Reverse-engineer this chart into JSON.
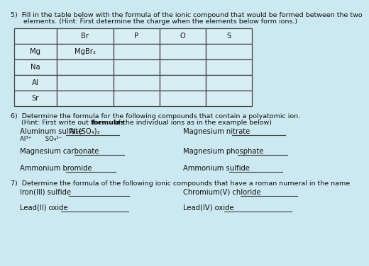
{
  "bg_color": "#cce8f0",
  "table_bg": "#d8eef5",
  "text_color": "#111111",
  "title5": "5)  Fill in the table below with the formula of the ionic compound that would be formed between the two",
  "title5b": "      elements. (Hint: First determine the charge when the elements below form ions.)",
  "table_headers": [
    "",
    "Br",
    "P",
    "O",
    "S"
  ],
  "table_rows": [
    [
      "Mg",
      "MgBr₂",
      "",
      "",
      ""
    ],
    [
      "Na",
      "",
      "",
      "",
      ""
    ],
    [
      "Al",
      "",
      "",
      "",
      ""
    ],
    [
      "Sr",
      "",
      "",
      "",
      ""
    ]
  ],
  "section6_line1": "6)  Determine the formula for the following compounds that contain a polyatomic ion.",
  "section6_line2a": "     (Hint: First write out the ",
  "section6_line2b": "formulas",
  "section6_line2c": " of the individual ions as in the example below)",
  "alum_label": "Aluminum sulfate",
  "alum_answer": "Al₂(SO₄)₃",
  "alum_sub": "Al³⁺       SO₄²⁻",
  "left_col6": [
    "Magnesium carbonate",
    "Ammonium bromide"
  ],
  "right_col6_labels": [
    "Magnesium nitrate",
    "Magnesium phosphate",
    "Ammonium sulfide"
  ],
  "section7_line": "7)  Determine the formula of the following ionic compounds that have a roman numeral in the name",
  "left_col7": [
    "Iron(III) sulfide",
    "Lead(II) oxide"
  ],
  "right_col7": [
    "Chromium(V) chloride",
    "Lead(IV) oxide"
  ]
}
